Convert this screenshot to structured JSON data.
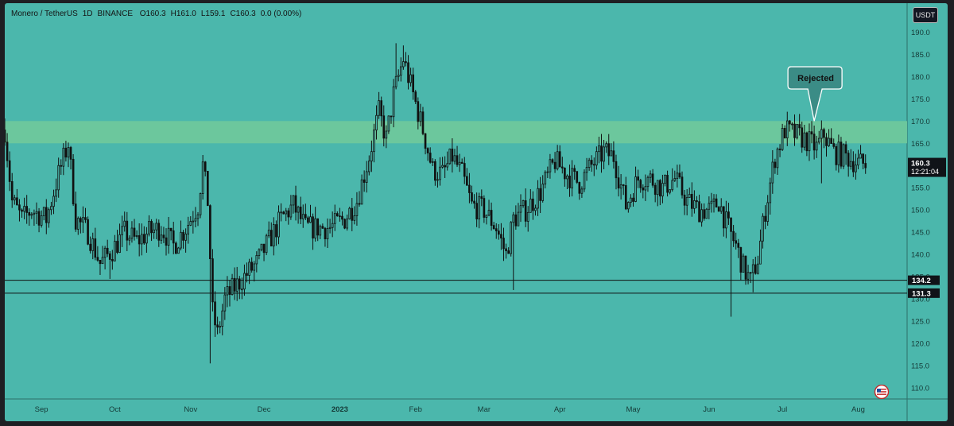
{
  "header": {
    "pair": "Monero / TetherUS",
    "interval": "1D",
    "exchange": "BINANCE",
    "open": "O160.3",
    "high": "H161.0",
    "low": "L159.1",
    "close": "C160.3",
    "change": "0.0 (0.00%)"
  },
  "currency_button": "USDT",
  "price_tag": {
    "price": "160.3",
    "countdown": "12:21:04"
  },
  "line_labels": [
    "134.2",
    "131.3"
  ],
  "annotation": "Rejected",
  "colors": {
    "background": "#4bb7ac",
    "zone": "#6ec79c",
    "candle": "#111111",
    "axis_bg": "#4bb7ac",
    "price_tag_bg": "#101318"
  },
  "chart_data": {
    "type": "candlestick",
    "title": "",
    "xlabel": "",
    "ylabel": "",
    "ylim": [
      107.5,
      191.5
    ],
    "yticks": [
      110,
      115,
      120,
      125,
      130,
      135,
      140,
      145,
      150,
      155,
      160,
      165,
      170,
      175,
      180,
      185,
      190
    ],
    "ytick_labels": [
      "110.0",
      "115.0",
      "120.0",
      "125.0",
      "130.0",
      "135.0",
      "140.0",
      "145.0",
      "150.0",
      "155.0",
      "160.0",
      "165.0",
      "170.0",
      "175.0",
      "180.0",
      "185.0",
      "190.0"
    ],
    "x_labels": [
      "Sep",
      "Oct",
      "Nov",
      "Dec",
      "2023",
      "Feb",
      "Mar",
      "Apr",
      "May",
      "Jun",
      "Jul",
      "Aug"
    ],
    "horizontal_lines": [
      134.2,
      131.3
    ],
    "zone": [
      165,
      170
    ],
    "last_price": 160.3,
    "grid": false,
    "series": [
      {
        "anchors": [
          [
            "2022-08-17",
            168
          ],
          [
            "2022-08-20",
            152
          ],
          [
            "2022-08-24",
            148
          ],
          [
            "2022-08-28",
            150
          ],
          [
            "2022-09-03",
            148
          ],
          [
            "2022-09-08",
            158
          ],
          [
            "2022-09-12",
            165
          ],
          [
            "2022-09-15",
            148
          ],
          [
            "2022-09-20",
            145
          ],
          [
            "2022-09-25",
            138
          ],
          [
            "2022-09-30",
            141
          ],
          [
            "2022-10-05",
            145
          ],
          [
            "2022-10-10",
            143
          ],
          [
            "2022-10-15",
            145
          ],
          [
            "2022-10-20",
            146
          ],
          [
            "2022-10-25",
            142
          ],
          [
            "2022-10-30",
            146
          ],
          [
            "2022-11-04",
            151
          ],
          [
            "2022-11-06",
            160
          ],
          [
            "2022-11-08",
            152
          ],
          [
            "2022-11-10",
            127
          ],
          [
            "2022-11-12",
            122
          ],
          [
            "2022-11-15",
            130
          ],
          [
            "2022-11-18",
            132
          ],
          [
            "2022-11-23",
            135
          ],
          [
            "2022-11-28",
            138
          ],
          [
            "2022-12-03",
            143
          ],
          [
            "2022-12-08",
            148
          ],
          [
            "2022-12-13",
            151
          ],
          [
            "2022-12-18",
            146
          ],
          [
            "2022-12-23",
            146
          ],
          [
            "2022-12-28",
            146
          ],
          [
            "2023-01-03",
            148
          ],
          [
            "2023-01-08",
            152
          ],
          [
            "2023-01-13",
            162
          ],
          [
            "2023-01-17",
            172
          ],
          [
            "2023-01-20",
            166
          ],
          [
            "2023-01-23",
            176
          ],
          [
            "2023-01-27",
            184
          ],
          [
            "2023-01-31",
            176
          ],
          [
            "2023-02-04",
            168
          ],
          [
            "2023-02-08",
            159
          ],
          [
            "2023-02-12",
            158
          ],
          [
            "2023-02-16",
            162
          ],
          [
            "2023-02-20",
            158
          ],
          [
            "2023-02-24",
            151
          ],
          [
            "2023-03-01",
            150
          ],
          [
            "2023-03-06",
            146
          ],
          [
            "2023-03-10",
            140
          ],
          [
            "2023-03-13",
            148
          ],
          [
            "2023-03-18",
            150
          ],
          [
            "2023-03-24",
            154
          ],
          [
            "2023-03-30",
            161
          ],
          [
            "2023-04-04",
            158
          ],
          [
            "2023-04-09",
            156
          ],
          [
            "2023-04-14",
            160
          ],
          [
            "2023-04-19",
            163
          ],
          [
            "2023-04-23",
            162
          ],
          [
            "2023-04-28",
            151
          ],
          [
            "2023-05-03",
            157
          ],
          [
            "2023-05-08",
            157
          ],
          [
            "2023-05-13",
            155
          ],
          [
            "2023-05-18",
            157
          ],
          [
            "2023-05-23",
            152
          ],
          [
            "2023-05-28",
            150
          ],
          [
            "2023-06-02",
            150
          ],
          [
            "2023-06-05",
            152
          ],
          [
            "2023-06-08",
            147
          ],
          [
            "2023-06-12",
            142
          ],
          [
            "2023-06-15",
            137
          ],
          [
            "2023-06-18",
            134
          ],
          [
            "2023-06-21",
            139
          ],
          [
            "2023-06-24",
            150
          ],
          [
            "2023-06-28",
            162
          ],
          [
            "2023-07-02",
            168
          ],
          [
            "2023-07-06",
            167
          ],
          [
            "2023-07-10",
            166
          ],
          [
            "2023-07-15",
            164
          ],
          [
            "2023-07-18",
            167
          ],
          [
            "2023-07-22",
            163
          ],
          [
            "2023-07-27",
            162
          ],
          [
            "2023-08-01",
            160.5
          ],
          [
            "2023-08-04",
            160.3
          ]
        ]
      }
    ],
    "annotation": {
      "text": "Rejected",
      "x": "2023-07-14",
      "y": 170
    }
  }
}
